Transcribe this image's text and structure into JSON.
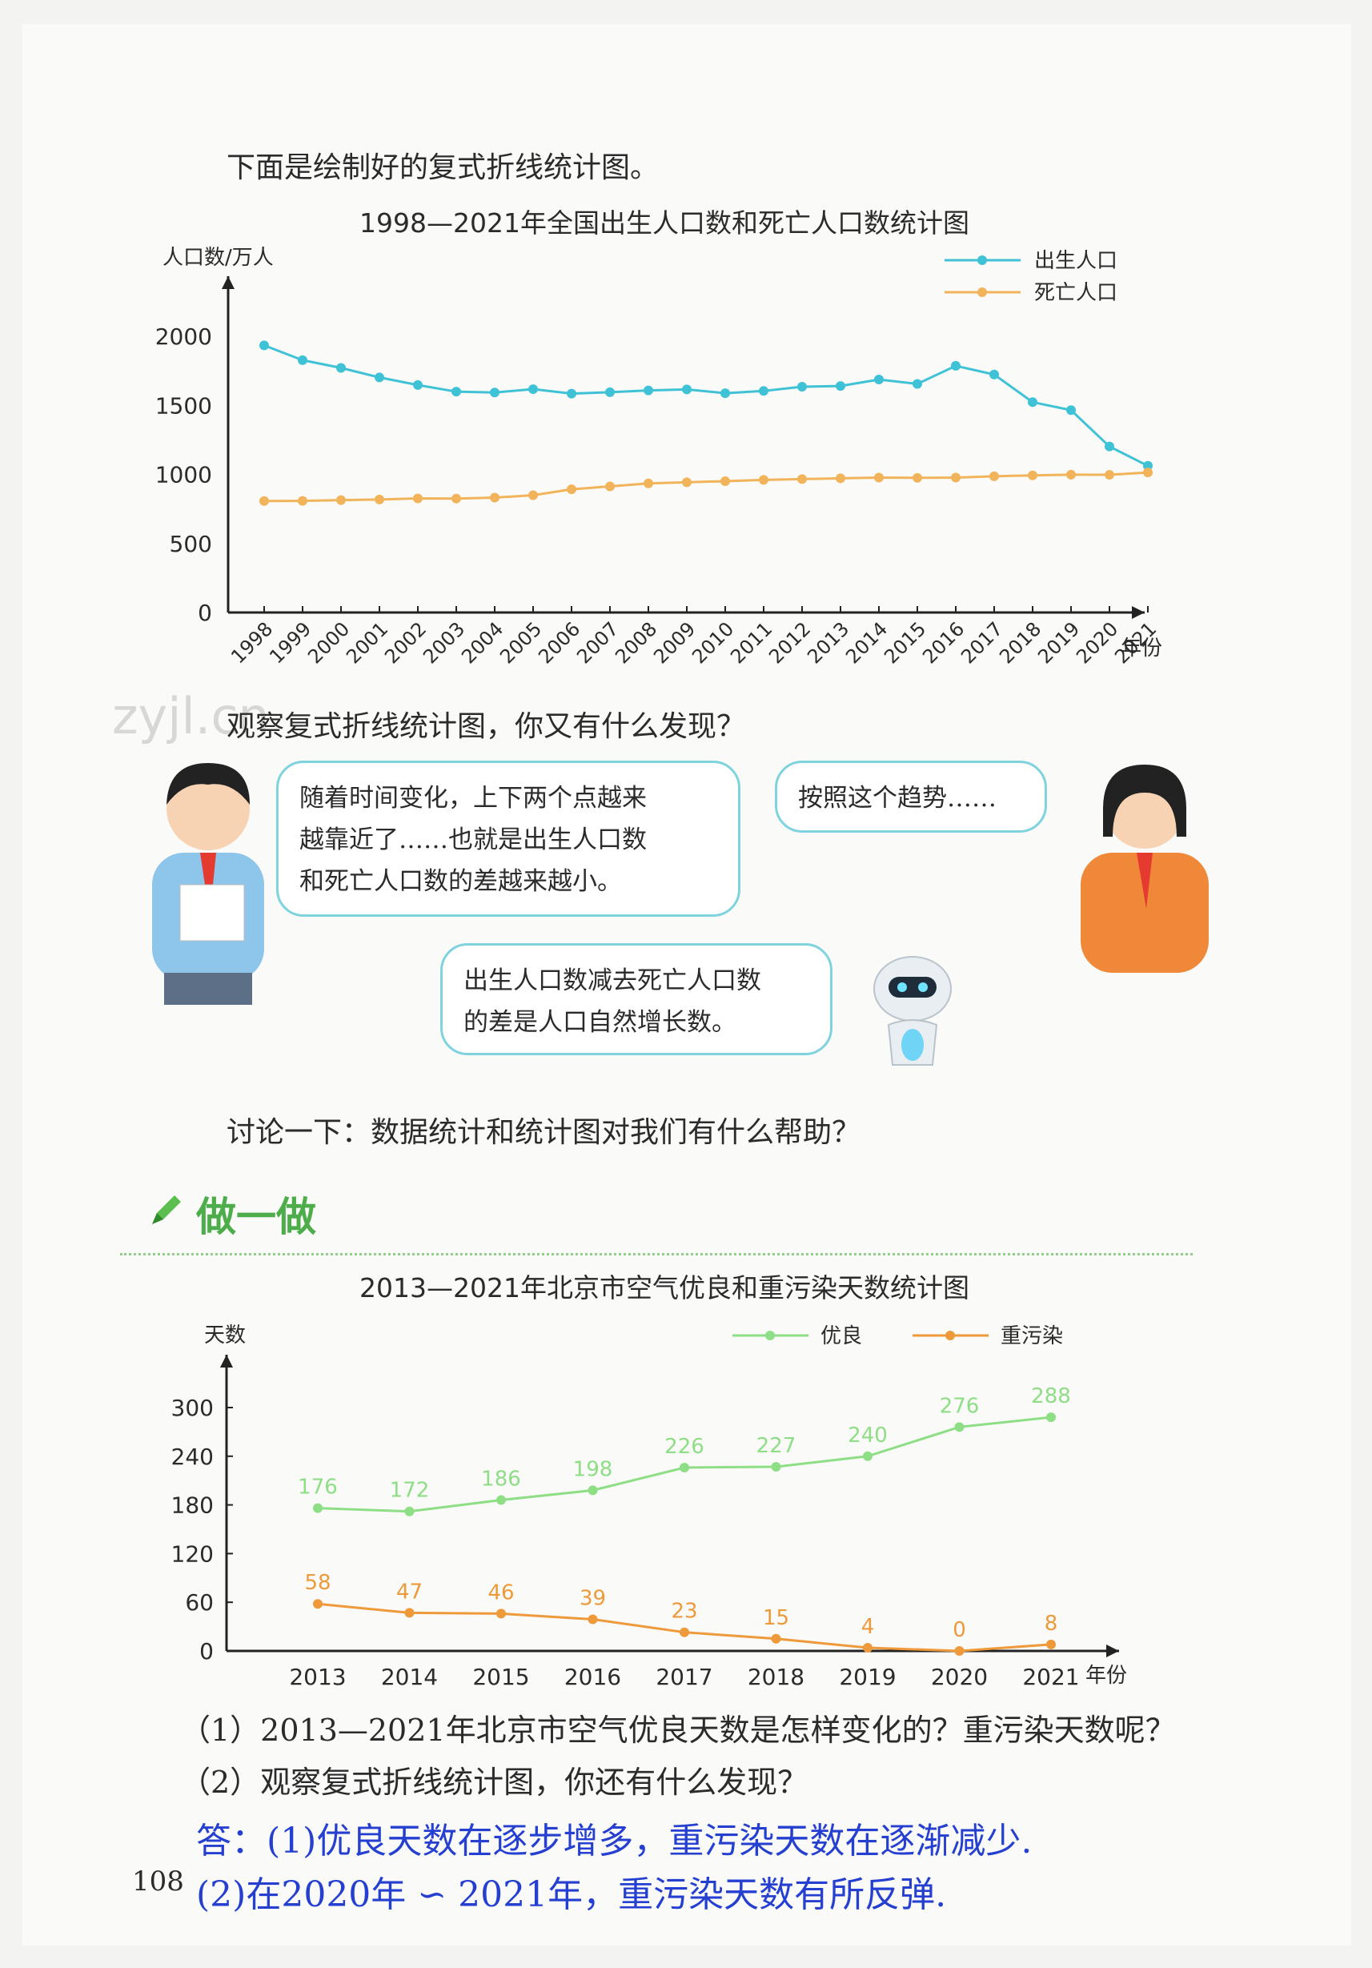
{
  "intro_text": "下面是绘制好的复式折线统计图。",
  "chart1": {
    "title": "1998—2021年全国出生人口数和死亡人口数统计图",
    "ylabel": "人口数/万人",
    "xlabel": "年份",
    "legend_births": "出生人口",
    "legend_deaths": "死亡人口",
    "color_births": "#3fc2d6",
    "color_deaths": "#f2b45a"
  },
  "watermark": "zyjl.cn",
  "question1": "观察复式折线统计图，你又有什么发现？",
  "bubble_boy": [
    "随着时间变化，上下两个点越来",
    "越靠近了……也就是出生人口数",
    "和死亡人口数的差越来越小。"
  ],
  "bubble_girl": "按照这个趋势……",
  "bubble_robot": [
    "出生人口数减去死亡人口数",
    "的差是人口自然增长数。"
  ],
  "discuss": "讨论一下：数据统计和统计图对我们有什么帮助？",
  "section_title": "做一做",
  "chart2": {
    "title": "2013—2021年北京市空气优良和重污染天数统计图",
    "ylabel": "天数",
    "xlabel": "年份",
    "legend_good": "优良",
    "legend_bad": "重污染",
    "color_good": "#8ede86",
    "color_bad": "#ee9a3a"
  },
  "q_1": "（1）2013—2021年北京市空气优良天数是怎样变化的？重污染天数呢？",
  "q_2": "（2）观察复式折线统计图，你还有什么发现？",
  "answer_1": "答：(1)优良天数在逐步增多，重污染天数在逐渐减少.",
  "answer_2": "(2)在2020年 ∽ 2021年，重污染天数有所反弹.",
  "page_number": "108",
  "chart_data": [
    {
      "type": "line",
      "title": "1998—2021年全国出生人口数和死亡人口数统计图",
      "xlabel": "年份",
      "ylabel": "人口数/万人",
      "x": [
        "1998",
        "1999",
        "2000",
        "2001",
        "2002",
        "2003",
        "2004",
        "2005",
        "2006",
        "2007",
        "2008",
        "2009",
        "2010",
        "2011",
        "2012",
        "2013",
        "2014",
        "2015",
        "2016",
        "2017",
        "2018",
        "2019",
        "2020",
        "2021"
      ],
      "yticks": [
        0,
        500,
        1000,
        1500,
        2000
      ],
      "ylim": [
        0,
        2000
      ],
      "legend": "top-right",
      "series": [
        {
          "name": "出生人口",
          "values": [
            1934,
            1827,
            1771,
            1702,
            1647,
            1599,
            1593,
            1617,
            1585,
            1595,
            1608,
            1615,
            1588,
            1604,
            1635,
            1640,
            1687,
            1655,
            1786,
            1723,
            1523,
            1465,
            1202,
            1062
          ]
        },
        {
          "name": "死亡人口",
          "values": [
            807,
            808,
            814,
            818,
            826,
            825,
            832,
            849,
            892,
            913,
            935,
            943,
            951,
            960,
            966,
            972,
            977,
            975,
            977,
            986,
            993,
            998,
            997,
            1014
          ]
        }
      ]
    },
    {
      "type": "line",
      "title": "2013—2021年北京市空气优良和重污染天数统计图",
      "xlabel": "年份",
      "ylabel": "天数",
      "x": [
        "2013",
        "2014",
        "2015",
        "2016",
        "2017",
        "2018",
        "2019",
        "2020",
        "2021"
      ],
      "yticks": [
        0,
        60,
        120,
        180,
        240,
        300
      ],
      "legend": "top-right",
      "series": [
        {
          "name": "优良",
          "values": [
            176,
            172,
            186,
            198,
            226,
            227,
            240,
            276,
            288
          ]
        },
        {
          "name": "重污染",
          "values": [
            58,
            47,
            46,
            39,
            23,
            15,
            4,
            0,
            8
          ]
        }
      ]
    }
  ]
}
